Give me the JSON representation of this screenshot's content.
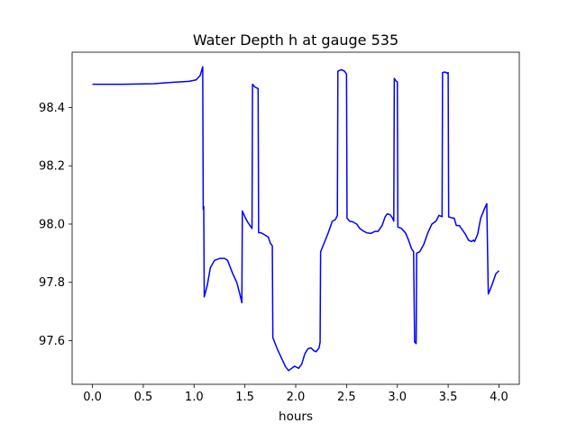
{
  "chart_data": {
    "type": "line",
    "title": "Water Depth h at gauge 535",
    "xlabel": "hours",
    "ylabel": "",
    "xlim": [
      -0.2,
      4.2
    ],
    "ylim": [
      97.45,
      98.59
    ],
    "xticks": [
      0.0,
      0.5,
      1.0,
      1.5,
      2.0,
      2.5,
      3.0,
      3.5,
      4.0
    ],
    "xtick_labels": [
      "0.0",
      "0.5",
      "1.0",
      "1.5",
      "2.0",
      "2.5",
      "3.0",
      "3.5",
      "4.0"
    ],
    "yticks": [
      97.6,
      97.8,
      98.0,
      98.2,
      98.4
    ],
    "ytick_labels": [
      "97.6",
      "97.8",
      "98.0",
      "98.2",
      "98.4"
    ],
    "grid": false,
    "legend": "none",
    "series": [
      {
        "color": "#0000ff",
        "points": [
          [
            0.0,
            98.48
          ],
          [
            0.3,
            98.48
          ],
          [
            0.6,
            98.482
          ],
          [
            0.8,
            98.487
          ],
          [
            0.95,
            98.49
          ],
          [
            1.02,
            98.495
          ],
          [
            1.06,
            98.51
          ],
          [
            1.085,
            98.54
          ],
          [
            1.09,
            98.05
          ],
          [
            1.095,
            98.06
          ],
          [
            1.1,
            97.75
          ],
          [
            1.13,
            97.79
          ],
          [
            1.16,
            97.85
          ],
          [
            1.2,
            97.875
          ],
          [
            1.25,
            97.882
          ],
          [
            1.3,
            97.882
          ],
          [
            1.33,
            97.875
          ],
          [
            1.38,
            97.83
          ],
          [
            1.42,
            97.8
          ],
          [
            1.45,
            97.76
          ],
          [
            1.47,
            97.73
          ],
          [
            1.475,
            98.045
          ],
          [
            1.5,
            98.025
          ],
          [
            1.53,
            98.005
          ],
          [
            1.57,
            97.985
          ],
          [
            1.575,
            98.48
          ],
          [
            1.6,
            98.47
          ],
          [
            1.63,
            98.465
          ],
          [
            1.635,
            97.97
          ],
          [
            1.66,
            97.97
          ],
          [
            1.7,
            97.962
          ],
          [
            1.73,
            97.955
          ],
          [
            1.75,
            97.935
          ],
          [
            1.77,
            97.925
          ],
          [
            1.775,
            97.61
          ],
          [
            1.82,
            97.57
          ],
          [
            1.86,
            97.54
          ],
          [
            1.9,
            97.51
          ],
          [
            1.93,
            97.497
          ],
          [
            1.96,
            97.505
          ],
          [
            1.99,
            97.512
          ],
          [
            2.03,
            97.505
          ],
          [
            2.06,
            97.52
          ],
          [
            2.09,
            97.555
          ],
          [
            2.12,
            97.572
          ],
          [
            2.15,
            97.575
          ],
          [
            2.18,
            97.565
          ],
          [
            2.2,
            97.562
          ],
          [
            2.23,
            97.575
          ],
          [
            2.24,
            97.595
          ],
          [
            2.245,
            97.905
          ],
          [
            2.28,
            97.935
          ],
          [
            2.32,
            97.97
          ],
          [
            2.36,
            98.01
          ],
          [
            2.39,
            98.015
          ],
          [
            2.41,
            98.03
          ],
          [
            2.415,
            98.525
          ],
          [
            2.45,
            98.53
          ],
          [
            2.48,
            98.525
          ],
          [
            2.5,
            98.515
          ],
          [
            2.505,
            98.02
          ],
          [
            2.53,
            98.01
          ],
          [
            2.56,
            98.008
          ],
          [
            2.6,
            98.0
          ],
          [
            2.63,
            97.985
          ],
          [
            2.67,
            97.975
          ],
          [
            2.7,
            97.97
          ],
          [
            2.74,
            97.968
          ],
          [
            2.78,
            97.975
          ],
          [
            2.81,
            97.975
          ],
          [
            2.85,
            97.995
          ],
          [
            2.88,
            98.025
          ],
          [
            2.9,
            98.035
          ],
          [
            2.93,
            98.032
          ],
          [
            2.95,
            98.022
          ],
          [
            2.965,
            98.01
          ],
          [
            2.97,
            98.5
          ],
          [
            2.99,
            98.49
          ],
          [
            3.0,
            98.488
          ],
          [
            3.005,
            97.99
          ],
          [
            3.04,
            97.985
          ],
          [
            3.08,
            97.97
          ],
          [
            3.11,
            97.945
          ],
          [
            3.14,
            97.915
          ],
          [
            3.16,
            97.905
          ],
          [
            3.17,
            97.595
          ],
          [
            3.185,
            97.59
          ],
          [
            3.19,
            97.9
          ],
          [
            3.22,
            97.905
          ],
          [
            3.26,
            97.93
          ],
          [
            3.3,
            97.97
          ],
          [
            3.34,
            98.0
          ],
          [
            3.38,
            98.01
          ],
          [
            3.41,
            98.03
          ],
          [
            3.44,
            98.025
          ],
          [
            3.445,
            98.52
          ],
          [
            3.47,
            98.522
          ],
          [
            3.49,
            98.518
          ],
          [
            3.5,
            98.52
          ],
          [
            3.505,
            98.025
          ],
          [
            3.53,
            98.022
          ],
          [
            3.56,
            98.02
          ],
          [
            3.58,
            97.995
          ],
          [
            3.61,
            97.995
          ],
          [
            3.64,
            97.98
          ],
          [
            3.67,
            97.965
          ],
          [
            3.7,
            97.945
          ],
          [
            3.73,
            97.94
          ],
          [
            3.75,
            97.945
          ],
          [
            3.76,
            97.94
          ],
          [
            3.79,
            97.965
          ],
          [
            3.82,
            98.02
          ],
          [
            3.86,
            98.055
          ],
          [
            3.88,
            98.07
          ],
          [
            3.895,
            97.76
          ],
          [
            3.93,
            97.79
          ],
          [
            3.97,
            97.83
          ],
          [
            4.0,
            97.84
          ]
        ]
      }
    ]
  }
}
